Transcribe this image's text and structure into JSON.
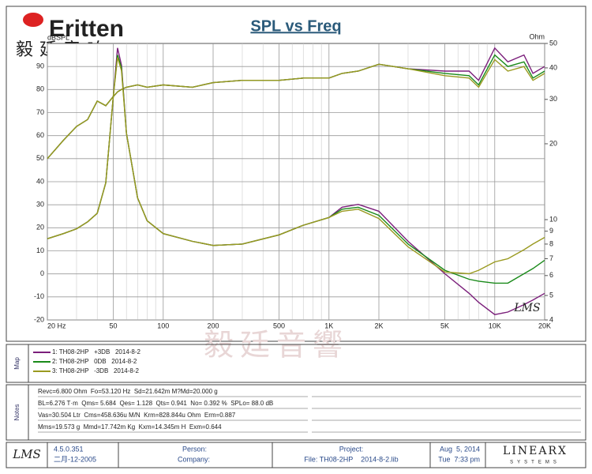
{
  "logo": {
    "brand": "Eritten",
    "chinese": "毅廷音响"
  },
  "watermark": "毅廷音響",
  "chart_data": {
    "type": "line",
    "title": "SPL vs Freq",
    "ylabel": "dBSPL",
    "y2label": "Ohm",
    "annotation": "LMS",
    "xscale": "log",
    "y2scale": "log",
    "grid": true,
    "xlim": [
      20,
      20000
    ],
    "xticks": [
      {
        "value": 20,
        "label": "20 Hz"
      },
      50,
      100,
      200,
      500,
      {
        "value": 1000,
        "label": "1K"
      },
      {
        "value": 2000,
        "label": "2K"
      },
      {
        "value": 5000,
        "label": "5K"
      },
      {
        "value": 10000,
        "label": "10K"
      },
      {
        "value": 20000,
        "label": "20K"
      }
    ],
    "xminor": [
      30,
      40,
      60,
      70,
      80,
      90,
      300,
      400,
      600,
      700,
      800,
      900,
      3000,
      4000,
      6000,
      7000,
      8000,
      9000
    ],
    "ylim": [
      -20,
      100
    ],
    "yticks": [
      -20,
      -10,
      0,
      10,
      20,
      30,
      40,
      50,
      60,
      70,
      80,
      90
    ],
    "y2lim": [
      4,
      50
    ],
    "y2ticks": [
      4,
      5,
      6,
      7,
      8,
      9,
      10,
      20,
      30,
      40,
      50
    ],
    "x": [
      20,
      25,
      30,
      35,
      40,
      45,
      50,
      53,
      56,
      60,
      70,
      80,
      100,
      150,
      200,
      300,
      500,
      700,
      1000,
      1200,
      1500,
      2000,
      3000,
      5000,
      7000,
      8000,
      10000,
      12000,
      15000,
      17000,
      20000
    ],
    "series": [
      {
        "name": "1: TH08-2HP   +3DB   2014-8-2",
        "color": "#7b1f7b",
        "values": [
          50,
          58,
          64,
          67,
          75,
          73,
          77,
          79,
          80,
          81,
          82,
          81,
          82,
          81,
          83,
          84,
          84,
          85,
          85,
          87,
          88,
          91,
          89,
          88,
          88,
          84,
          98,
          92,
          95,
          87,
          90
        ]
      },
      {
        "name": "2: TH08-2HP   0DB   2014-8-2",
        "color": "#1a8a1a",
        "values": [
          50,
          58,
          64,
          67,
          75,
          73,
          77,
          79,
          80,
          81,
          82,
          81,
          82,
          81,
          83,
          84,
          84,
          85,
          85,
          87,
          88,
          91,
          89,
          87,
          86,
          82,
          95,
          90,
          92,
          85,
          88
        ]
      },
      {
        "name": "3: TH08-2HP   -3DB   2014-8-2",
        "color": "#9a9a20",
        "values": [
          50,
          58,
          64,
          67,
          75,
          73,
          77,
          79,
          80,
          81,
          82,
          81,
          82,
          81,
          83,
          84,
          84,
          85,
          85,
          87,
          88,
          91,
          89,
          86,
          85,
          81,
          93,
          88,
          90,
          84,
          87
        ]
      },
      {
        "axis": "y2",
        "color": "#7b1f7b",
        "values": [
          8.4,
          8.8,
          9.2,
          9.8,
          10.6,
          14,
          31,
          48,
          41,
          22,
          12.2,
          9.9,
          8.8,
          8.2,
          7.9,
          8.0,
          8.7,
          9.5,
          10.2,
          11.2,
          11.5,
          10.8,
          8.2,
          6.1,
          5.1,
          4.7,
          4.2,
          4.3,
          4.6,
          4.8,
          5.1
        ]
      },
      {
        "axis": "y2",
        "color": "#1a8a1a",
        "values": [
          8.4,
          8.8,
          9.2,
          9.8,
          10.6,
          14,
          31,
          45,
          40,
          22,
          12.2,
          9.9,
          8.8,
          8.2,
          7.9,
          8.0,
          8.7,
          9.5,
          10.2,
          11,
          11.2,
          10.4,
          8.0,
          6.3,
          5.8,
          5.7,
          5.6,
          5.6,
          6.1,
          6.4,
          6.9
        ]
      },
      {
        "axis": "y2",
        "color": "#9a9a20",
        "values": [
          8.4,
          8.8,
          9.2,
          9.8,
          10.6,
          14,
          31,
          44,
          39,
          22,
          12.2,
          9.9,
          8.8,
          8.2,
          7.9,
          8.0,
          8.7,
          9.5,
          10.2,
          10.8,
          11.0,
          10.1,
          7.8,
          6.2,
          6.1,
          6.3,
          6.8,
          7.0,
          7.6,
          8.0,
          8.5
        ]
      }
    ]
  },
  "legend_panel": {
    "label": "Map"
  },
  "notes": {
    "label": "Notes",
    "lines": [
      "Revc=6.800 Ohm  Fo=53.120 Hz  Sd=21.642m M?Md=20.000 g",
      "BL=6.276 T·m  Qms= 5.684  Qes= 1.128  Qts= 0.941  No= 0.392 %  SPLo= 88.0 dB",
      "Vas=30.504 Ltr  Cms=458.636u M/N  Krm=828.844u Ohm  Erm=0.887",
      "Mms=19.573 g  Mmd=17.742m Kg  Kxm=14.345m H  Exm=0.644"
    ]
  },
  "footer": {
    "logo": "LMS",
    "version": "4.5.0.351",
    "build_date": "二月-12-2005",
    "person": "Person:",
    "company": "Company:",
    "project": "Project:",
    "file": "File: TH08-2HP    2014-8-2.lib",
    "date": "Aug  5, 2014",
    "time": "Tue  7:33 pm",
    "brand": "LINEARX",
    "brand_sub": "SYSTEMS"
  }
}
